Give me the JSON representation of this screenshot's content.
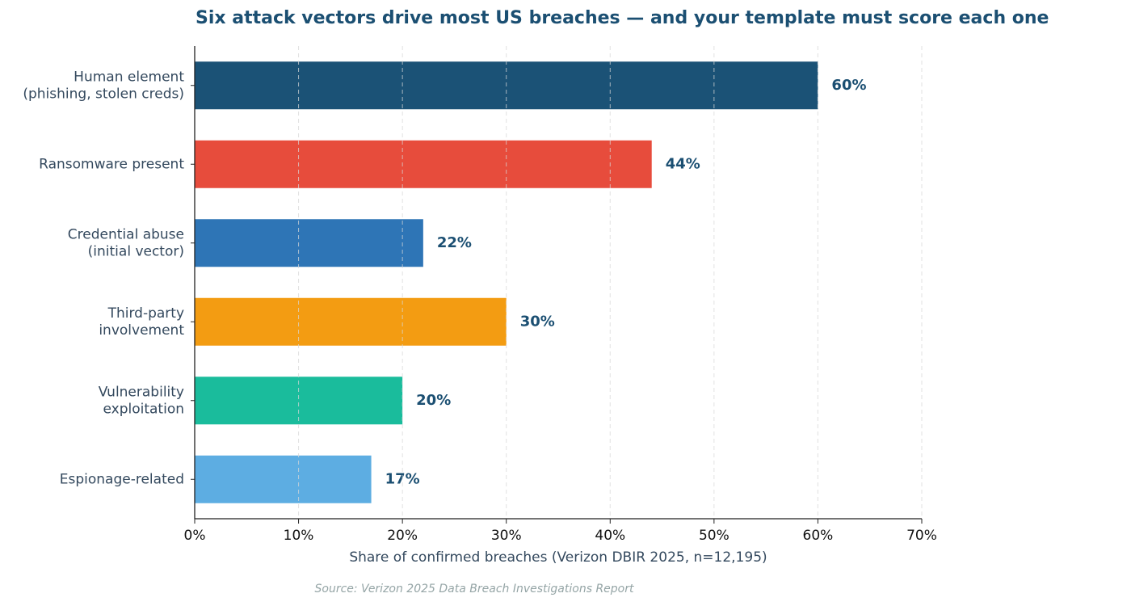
{
  "chart_data": {
    "type": "hbar",
    "title": "Six attack vectors drive most US breaches — and your template must score each one",
    "x_label": "Share of confirmed breaches (Verizon DBIR 2025, n=12,195)",
    "source": "Source: Verizon 2025 Data Breach Investigations Report",
    "categories": [
      "Human element\n(phishing, stolen creds)",
      "Ransomware present",
      "Credential abuse\n(initial vector)",
      "Third-party\ninvolvement",
      "Vulnerability\nexploitation",
      "Espionage-related"
    ],
    "values": [
      60,
      44,
      22,
      30,
      20,
      17
    ],
    "value_labels": [
      "60%",
      "44%",
      "22%",
      "30%",
      "20%",
      "17%"
    ],
    "colors": [
      "#1b5276",
      "#e74c3c",
      "#2e75b6",
      "#f39c12",
      "#1abc9c",
      "#5dade2"
    ],
    "xlim": [
      0,
      70
    ],
    "xticks": [
      {
        "value": 0,
        "label": "0%"
      },
      {
        "value": 10,
        "label": "10%"
      },
      {
        "value": 20,
        "label": "20%"
      },
      {
        "value": 30,
        "label": "30%"
      },
      {
        "value": 40,
        "label": "40%"
      },
      {
        "value": 50,
        "label": "50%"
      },
      {
        "value": 60,
        "label": "60%"
      },
      {
        "value": 70,
        "label": "70%"
      }
    ],
    "grid": true
  }
}
